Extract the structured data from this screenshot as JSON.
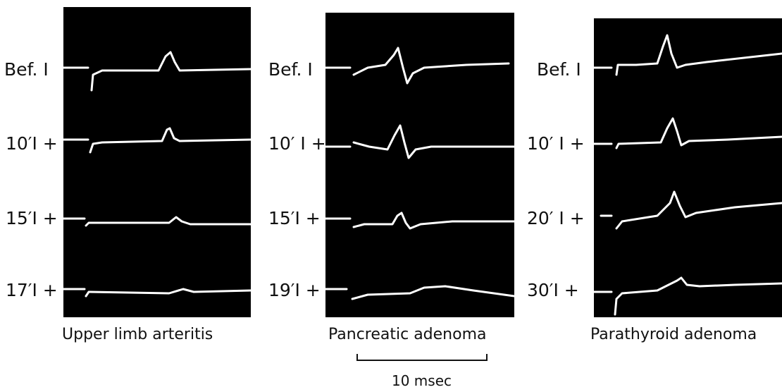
{
  "panels": [
    {
      "caption": "Upper limb arteritis",
      "rows": [
        {
          "label": "Bef. I"
        },
        {
          "label": "10′I +"
        },
        {
          "label": "15′I +"
        },
        {
          "label": "17′I +"
        }
      ]
    },
    {
      "caption": "Pancreatic adenoma",
      "rows": [
        {
          "label": "Bef. I"
        },
        {
          "label": "10′ I +"
        },
        {
          "label": "15′I +"
        },
        {
          "label": "19′I +"
        }
      ]
    },
    {
      "caption": "Parathyroid adenoma",
      "rows": [
        {
          "label": "Bef. I"
        },
        {
          "label": "10′ I +"
        },
        {
          "label": "20′ I +"
        },
        {
          "label": "30′I +"
        }
      ]
    }
  ],
  "scale_bar": {
    "label": "10 msec"
  }
}
